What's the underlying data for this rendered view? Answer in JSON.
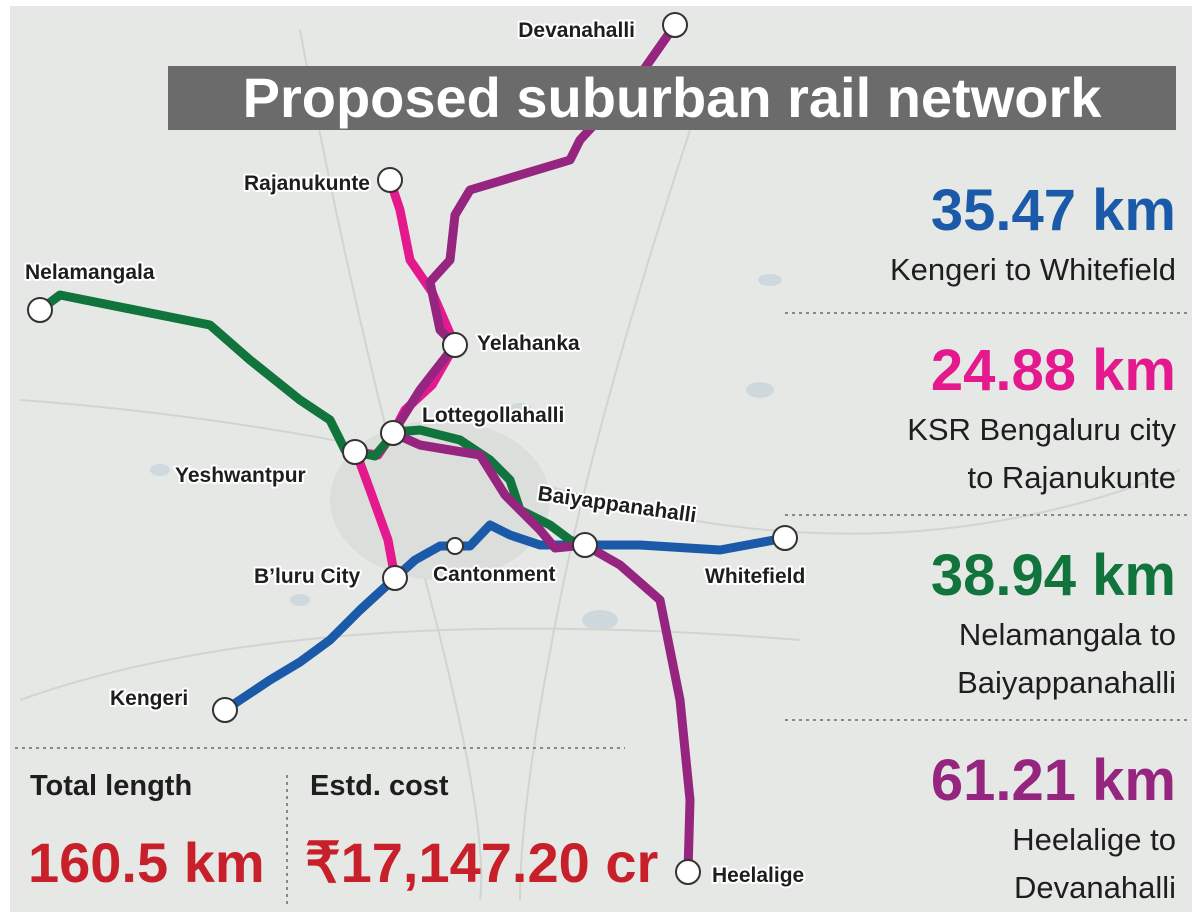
{
  "title": "Proposed suburban rail network",
  "stations": [
    {
      "label": "Devanahalli"
    },
    {
      "label": "Rajanukunte"
    },
    {
      "label": "Nelamangala"
    },
    {
      "label": "Yelahanka"
    },
    {
      "label": "Lottegollahalli"
    },
    {
      "label": "Yeshwantpur"
    },
    {
      "label": "Baiyappanahalli"
    },
    {
      "label": "B’luru City"
    },
    {
      "label": "Cantonment"
    },
    {
      "label": "Whitefield"
    },
    {
      "label": "Kengeri"
    },
    {
      "label": "Heelalige"
    }
  ],
  "routes": [
    {
      "distance": "35.47 km",
      "description": [
        "Kengeri  to Whitefield"
      ],
      "color": "#1b5aa8"
    },
    {
      "distance": "24.88 km",
      "description": [
        "KSR Bengaluru city",
        "to Rajanukunte"
      ],
      "color": "#e5198e"
    },
    {
      "distance": "38.94 km",
      "description": [
        "Nelamangala to",
        "Baiyappanahalli"
      ],
      "color": "#10743c"
    },
    {
      "distance": "61.21 km",
      "description": [
        "Heelalige to",
        "Devanahalli"
      ],
      "color": "#962580"
    }
  ],
  "summary": {
    "length_label": "Total length",
    "length_value": "160.5 km",
    "cost_label": "Estd. cost",
    "cost_value": "₹17,147.20 cr"
  }
}
